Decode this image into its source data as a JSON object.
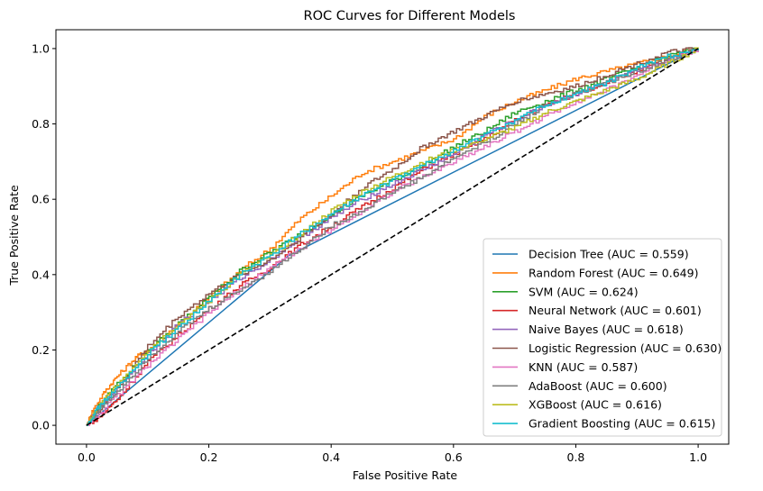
{
  "chart_data": {
    "type": "line",
    "title": "ROC Curves for Different Models",
    "xlabel": "False Positive Rate",
    "ylabel": "True Positive Rate",
    "xlim": [
      -0.05,
      1.05
    ],
    "ylim": [
      -0.05,
      1.05
    ],
    "xticks": [
      "0.0",
      "0.2",
      "0.4",
      "0.6",
      "0.8",
      "1.0"
    ],
    "yticks": [
      "0.0",
      "0.2",
      "0.4",
      "0.6",
      "0.8",
      "1.0"
    ],
    "grid": false,
    "legend_position": "lower-right",
    "series": [
      {
        "name": "Decision Tree (AUC = 0.559)",
        "color": "#1f77b4",
        "x": [
          0,
          0.33,
          1.0
        ],
        "y": [
          0,
          0.45,
          1.0
        ]
      },
      {
        "name": "Random Forest (AUC = 0.649)",
        "color": "#ff7f0e",
        "x": [
          0,
          0.01,
          0.03,
          0.05,
          0.08,
          0.1,
          0.15,
          0.2,
          0.25,
          0.3,
          0.35,
          0.4,
          0.45,
          0.5,
          0.55,
          0.6,
          0.65,
          0.7,
          0.75,
          0.8,
          0.85,
          0.9,
          0.95,
          1.0
        ],
        "y": [
          0,
          0.04,
          0.09,
          0.13,
          0.18,
          0.2,
          0.27,
          0.34,
          0.41,
          0.47,
          0.55,
          0.61,
          0.67,
          0.7,
          0.73,
          0.76,
          0.82,
          0.86,
          0.89,
          0.92,
          0.94,
          0.96,
          0.98,
          1.0
        ]
      },
      {
        "name": "SVM (AUC = 0.624)",
        "color": "#2ca02c",
        "x": [
          0,
          0.02,
          0.05,
          0.1,
          0.15,
          0.2,
          0.25,
          0.3,
          0.35,
          0.4,
          0.45,
          0.5,
          0.55,
          0.6,
          0.65,
          0.7,
          0.75,
          0.8,
          0.85,
          0.9,
          0.95,
          1.0
        ],
        "y": [
          0,
          0.05,
          0.11,
          0.2,
          0.27,
          0.34,
          0.41,
          0.46,
          0.51,
          0.56,
          0.61,
          0.65,
          0.69,
          0.74,
          0.78,
          0.83,
          0.86,
          0.89,
          0.92,
          0.95,
          0.98,
          1.0
        ]
      },
      {
        "name": "Neural Network (AUC = 0.601)",
        "color": "#d62728",
        "x": [
          0,
          0.02,
          0.05,
          0.1,
          0.15,
          0.2,
          0.25,
          0.3,
          0.35,
          0.4,
          0.45,
          0.5,
          0.55,
          0.6,
          0.65,
          0.7,
          0.75,
          0.8,
          0.85,
          0.9,
          0.95,
          1.0
        ],
        "y": [
          0,
          0.02,
          0.07,
          0.17,
          0.24,
          0.31,
          0.37,
          0.42,
          0.48,
          0.53,
          0.58,
          0.63,
          0.68,
          0.72,
          0.76,
          0.81,
          0.85,
          0.88,
          0.91,
          0.94,
          0.97,
          1.0
        ]
      },
      {
        "name": "Naive Bayes (AUC = 0.618)",
        "color": "#9467bd",
        "x": [
          0,
          0.02,
          0.05,
          0.1,
          0.15,
          0.2,
          0.25,
          0.3,
          0.35,
          0.4,
          0.45,
          0.5,
          0.55,
          0.6,
          0.65,
          0.7,
          0.75,
          0.8,
          0.85,
          0.9,
          0.95,
          1.0
        ],
        "y": [
          0,
          0.05,
          0.1,
          0.19,
          0.27,
          0.33,
          0.39,
          0.44,
          0.5,
          0.55,
          0.6,
          0.64,
          0.68,
          0.72,
          0.77,
          0.81,
          0.85,
          0.88,
          0.91,
          0.94,
          0.97,
          1.0
        ]
      },
      {
        "name": "Logistic Regression (AUC = 0.630)",
        "color": "#8c564b",
        "x": [
          0,
          0.02,
          0.05,
          0.1,
          0.15,
          0.2,
          0.25,
          0.3,
          0.35,
          0.4,
          0.45,
          0.5,
          0.55,
          0.6,
          0.65,
          0.7,
          0.75,
          0.8,
          0.85,
          0.9,
          0.95,
          1.0
        ],
        "y": [
          0,
          0.04,
          0.1,
          0.21,
          0.29,
          0.35,
          0.4,
          0.44,
          0.5,
          0.56,
          0.63,
          0.68,
          0.74,
          0.78,
          0.82,
          0.86,
          0.88,
          0.9,
          0.93,
          0.96,
          0.99,
          1.0
        ]
      },
      {
        "name": "KNN (AUC = 0.587)",
        "color": "#e377c2",
        "x": [
          0,
          0.05,
          0.1,
          0.15,
          0.2,
          0.25,
          0.3,
          0.35,
          0.4,
          0.45,
          0.5,
          0.55,
          0.6,
          0.65,
          0.7,
          0.75,
          0.8,
          0.85,
          0.9,
          0.95,
          1.0
        ],
        "y": [
          0,
          0.08,
          0.16,
          0.23,
          0.3,
          0.36,
          0.42,
          0.47,
          0.52,
          0.57,
          0.62,
          0.66,
          0.7,
          0.74,
          0.78,
          0.82,
          0.86,
          0.89,
          0.93,
          0.97,
          1.0
        ]
      },
      {
        "name": "AdaBoost (AUC = 0.600)",
        "color": "#7f7f7f",
        "x": [
          0,
          0.02,
          0.05,
          0.1,
          0.15,
          0.2,
          0.25,
          0.3,
          0.35,
          0.4,
          0.45,
          0.5,
          0.55,
          0.6,
          0.65,
          0.7,
          0.75,
          0.8,
          0.85,
          0.9,
          0.95,
          1.0
        ],
        "y": [
          0,
          0.04,
          0.09,
          0.18,
          0.25,
          0.31,
          0.36,
          0.41,
          0.47,
          0.53,
          0.57,
          0.62,
          0.66,
          0.71,
          0.75,
          0.8,
          0.85,
          0.88,
          0.91,
          0.94,
          0.97,
          1.0
        ]
      },
      {
        "name": "XGBoost (AUC = 0.616)",
        "color": "#bcbd22",
        "x": [
          0,
          0.02,
          0.05,
          0.1,
          0.15,
          0.2,
          0.25,
          0.3,
          0.35,
          0.4,
          0.45,
          0.5,
          0.55,
          0.6,
          0.65,
          0.7,
          0.75,
          0.8,
          0.85,
          0.9,
          0.95,
          1.0
        ],
        "y": [
          0,
          0.05,
          0.11,
          0.2,
          0.27,
          0.33,
          0.4,
          0.45,
          0.51,
          0.57,
          0.62,
          0.66,
          0.7,
          0.73,
          0.76,
          0.79,
          0.83,
          0.86,
          0.89,
          0.92,
          0.96,
          1.0
        ]
      },
      {
        "name": "Gradient Boosting (AUC = 0.615)",
        "color": "#17becf",
        "x": [
          0,
          0.02,
          0.05,
          0.1,
          0.15,
          0.2,
          0.25,
          0.3,
          0.35,
          0.4,
          0.45,
          0.5,
          0.55,
          0.6,
          0.65,
          0.7,
          0.75,
          0.8,
          0.85,
          0.9,
          0.95,
          1.0
        ],
        "y": [
          0,
          0.05,
          0.1,
          0.19,
          0.26,
          0.33,
          0.4,
          0.45,
          0.51,
          0.56,
          0.61,
          0.65,
          0.69,
          0.73,
          0.77,
          0.81,
          0.85,
          0.88,
          0.91,
          0.95,
          0.98,
          1.0
        ]
      }
    ],
    "reference_line": {
      "x": [
        0,
        1
      ],
      "y": [
        0,
        1
      ],
      "color": "#000000",
      "style": "dashed"
    }
  }
}
